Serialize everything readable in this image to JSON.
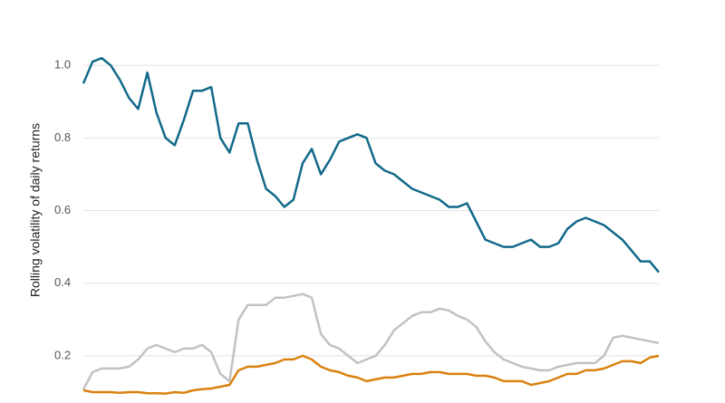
{
  "chart_data": {
    "type": "line",
    "y_label": "Rolling volatility of daily returns",
    "ylim": [
      0.07,
      1.18
    ],
    "yticks": [
      0.2,
      0.4,
      0.6,
      0.8,
      {
        "value": 1,
        "label": "1.0"
      }
    ],
    "grid": true,
    "series": [
      {
        "color": "#12698a",
        "values": [
          0.95,
          1.01,
          1.02,
          1.0,
          0.96,
          0.91,
          0.88,
          0.98,
          0.87,
          0.8,
          0.78,
          0.85,
          0.93,
          0.93,
          0.94,
          0.8,
          0.76,
          0.84,
          0.84,
          0.74,
          0.66,
          0.64,
          0.61,
          0.63,
          0.73,
          0.77,
          0.7,
          0.74,
          0.79,
          0.8,
          0.81,
          0.8,
          0.73,
          0.71,
          0.7,
          0.68,
          0.66,
          0.65,
          0.64,
          0.63,
          0.61,
          0.61,
          0.62,
          0.57,
          0.52,
          0.51,
          0.5,
          0.5,
          0.51,
          0.52,
          0.5,
          0.5,
          0.51,
          0.55,
          0.57,
          0.58,
          0.57,
          0.56,
          0.54,
          0.52,
          0.49,
          0.46,
          0.46,
          0.43
        ]
      },
      {
        "color": "#c2c2c2",
        "values": [
          0.107,
          0.155,
          0.165,
          0.165,
          0.165,
          0.17,
          0.19,
          0.22,
          0.23,
          0.22,
          0.21,
          0.22,
          0.22,
          0.23,
          0.21,
          0.15,
          0.13,
          0.3,
          0.34,
          0.34,
          0.34,
          0.36,
          0.36,
          0.365,
          0.37,
          0.36,
          0.26,
          0.23,
          0.22,
          0.2,
          0.18,
          0.19,
          0.2,
          0.23,
          0.27,
          0.29,
          0.31,
          0.32,
          0.32,
          0.33,
          0.325,
          0.31,
          0.3,
          0.28,
          0.24,
          0.21,
          0.19,
          0.18,
          0.17,
          0.165,
          0.16,
          0.16,
          0.17,
          0.175,
          0.18,
          0.18,
          0.18,
          0.2,
          0.25,
          0.255,
          0.25,
          0.245,
          0.24,
          0.235
        ]
      },
      {
        "color": "#d9820f",
        "values": [
          0.105,
          0.1,
          0.1,
          0.1,
          0.098,
          0.1,
          0.1,
          0.097,
          0.097,
          0.096,
          0.1,
          0.098,
          0.105,
          0.108,
          0.11,
          0.115,
          0.12,
          0.16,
          0.17,
          0.17,
          0.175,
          0.18,
          0.19,
          0.19,
          0.2,
          0.19,
          0.17,
          0.16,
          0.155,
          0.145,
          0.14,
          0.13,
          0.135,
          0.14,
          0.14,
          0.145,
          0.15,
          0.15,
          0.155,
          0.155,
          0.15,
          0.15,
          0.15,
          0.145,
          0.145,
          0.14,
          0.13,
          0.13,
          0.13,
          0.12,
          0.125,
          0.13,
          0.14,
          0.15,
          0.15,
          0.16,
          0.16,
          0.165,
          0.175,
          0.185,
          0.185,
          0.18,
          0.195,
          0.2
        ]
      }
    ]
  }
}
